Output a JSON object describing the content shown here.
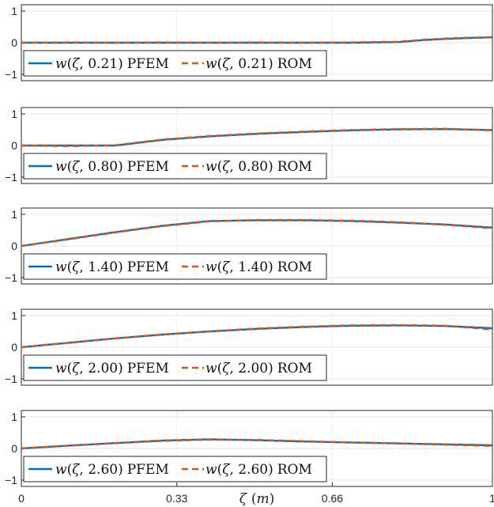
{
  "chart_data": [
    {
      "type": "line",
      "ylim": [
        -1.2,
        1.2
      ],
      "yticks": [
        "1",
        "0",
        "-1"
      ],
      "xlim": [
        0,
        1
      ],
      "grid": true,
      "legend_placement": "bottom-left",
      "legend": [
        "w(ζ, 0.21) PFEM",
        "w(ζ, 0.21) ROM"
      ],
      "series": [
        {
          "name": "w(ζ, 0.21) PFEM",
          "color": "#0072BD",
          "style": "solid",
          "x": [
            0,
            0.1,
            0.2,
            0.3,
            0.4,
            0.5,
            0.6,
            0.7,
            0.8,
            0.85,
            0.9,
            0.95,
            1.0
          ],
          "y": [
            0,
            0,
            0,
            0,
            0,
            0,
            0,
            0,
            0.02,
            0.08,
            0.12,
            0.15,
            0.17
          ]
        },
        {
          "name": "w(ζ, 0.21) ROM",
          "color": "#D95319",
          "style": "dashed",
          "x": [
            0,
            0.1,
            0.2,
            0.3,
            0.4,
            0.5,
            0.6,
            0.7,
            0.8,
            0.85,
            0.9,
            0.95,
            1.0
          ],
          "y": [
            0,
            0.01,
            0,
            0.01,
            0,
            0.01,
            0,
            0.01,
            0.03,
            0.09,
            0.13,
            0.16,
            0.17
          ]
        }
      ]
    },
    {
      "type": "line",
      "ylim": [
        -1.2,
        1.2
      ],
      "yticks": [
        "1",
        "0",
        "-1"
      ],
      "xlim": [
        0,
        1
      ],
      "grid": true,
      "legend_placement": "bottom-left",
      "legend": [
        "w(ζ, 0.80) PFEM",
        "w(ζ, 0.80) ROM"
      ],
      "series": [
        {
          "name": "w(ζ, 0.80) PFEM",
          "color": "#0072BD",
          "style": "solid",
          "x": [
            0,
            0.1,
            0.2,
            0.3,
            0.4,
            0.5,
            0.6,
            0.7,
            0.8,
            0.9,
            1.0
          ],
          "y": [
            0,
            0,
            0,
            0.18,
            0.29,
            0.37,
            0.43,
            0.48,
            0.51,
            0.52,
            0.49
          ]
        },
        {
          "name": "w(ζ, 0.80) ROM",
          "color": "#D95319",
          "style": "dashed",
          "x": [
            0,
            0.1,
            0.2,
            0.3,
            0.4,
            0.5,
            0.6,
            0.7,
            0.8,
            0.9,
            1.0
          ],
          "y": [
            0,
            -0.02,
            0.01,
            0.19,
            0.3,
            0.38,
            0.44,
            0.49,
            0.52,
            0.53,
            0.48
          ]
        }
      ]
    },
    {
      "type": "line",
      "ylim": [
        -1.2,
        1.2
      ],
      "yticks": [
        "1",
        "0",
        "-1"
      ],
      "xlim": [
        0,
        1
      ],
      "grid": true,
      "legend_placement": "bottom-left",
      "legend": [
        "w(ζ, 1.40) PFEM",
        "w(ζ, 1.40) ROM"
      ],
      "series": [
        {
          "name": "w(ζ, 1.40) PFEM",
          "color": "#0072BD",
          "style": "solid",
          "x": [
            0,
            0.1,
            0.2,
            0.3,
            0.4,
            0.5,
            0.6,
            0.7,
            0.8,
            0.9,
            1.0
          ],
          "y": [
            0,
            0.22,
            0.44,
            0.64,
            0.79,
            0.81,
            0.81,
            0.79,
            0.74,
            0.68,
            0.58
          ]
        },
        {
          "name": "w(ζ, 1.40) ROM",
          "color": "#D95319",
          "style": "dashed",
          "x": [
            0,
            0.1,
            0.2,
            0.3,
            0.4,
            0.5,
            0.6,
            0.7,
            0.8,
            0.9,
            1.0
          ],
          "y": [
            0,
            0.21,
            0.43,
            0.63,
            0.78,
            0.82,
            0.82,
            0.8,
            0.75,
            0.67,
            0.56
          ]
        }
      ]
    },
    {
      "type": "line",
      "ylim": [
        -1.2,
        1.2
      ],
      "yticks": [
        "1",
        "0",
        "-1"
      ],
      "xlim": [
        0,
        1
      ],
      "grid": true,
      "legend_placement": "bottom-left",
      "legend": [
        "w(ζ, 2.00) PFEM",
        "w(ζ, 2.00) ROM"
      ],
      "series": [
        {
          "name": "w(ζ, 2.00) PFEM",
          "color": "#0072BD",
          "style": "solid",
          "x": [
            0,
            0.1,
            0.2,
            0.3,
            0.4,
            0.5,
            0.6,
            0.7,
            0.8,
            0.9,
            1.0
          ],
          "y": [
            0,
            0.14,
            0.28,
            0.4,
            0.5,
            0.58,
            0.64,
            0.68,
            0.69,
            0.67,
            0.6
          ]
        },
        {
          "name": "w(ζ, 2.00) ROM",
          "color": "#D95319",
          "style": "dashed",
          "x": [
            0,
            0.1,
            0.2,
            0.3,
            0.4,
            0.5,
            0.6,
            0.7,
            0.8,
            0.9,
            1.0
          ],
          "y": [
            0,
            0.14,
            0.28,
            0.4,
            0.5,
            0.59,
            0.65,
            0.69,
            0.7,
            0.68,
            0.56
          ]
        }
      ]
    },
    {
      "type": "line",
      "ylim": [
        -1.2,
        1.2
      ],
      "yticks": [
        "1",
        "0",
        "-1"
      ],
      "xlim": [
        0,
        1
      ],
      "xticks": [
        0,
        0.33,
        0.66,
        1
      ],
      "xticklabels": [
        "0",
        "0.33",
        "0.66",
        "1"
      ],
      "xlabel": "ζ (m)",
      "grid": true,
      "legend_placement": "bottom-left",
      "legend": [
        "w(ζ, 2.60) PFEM",
        "w(ζ, 2.60) ROM"
      ],
      "series": [
        {
          "name": "w(ζ, 2.60) PFEM",
          "color": "#0072BD",
          "style": "solid",
          "x": [
            0,
            0.1,
            0.2,
            0.3,
            0.4,
            0.5,
            0.6,
            0.7,
            0.8,
            0.9,
            1.0
          ],
          "y": [
            0,
            0.09,
            0.17,
            0.25,
            0.29,
            0.26,
            0.22,
            0.19,
            0.16,
            0.13,
            0.1
          ]
        },
        {
          "name": "w(ζ, 2.60) ROM",
          "color": "#D95319",
          "style": "dashed",
          "x": [
            0,
            0.1,
            0.2,
            0.3,
            0.4,
            0.5,
            0.6,
            0.7,
            0.8,
            0.9,
            1.0
          ],
          "y": [
            0,
            0.09,
            0.17,
            0.24,
            0.28,
            0.27,
            0.23,
            0.19,
            0.16,
            0.12,
            0.08
          ]
        }
      ]
    }
  ]
}
